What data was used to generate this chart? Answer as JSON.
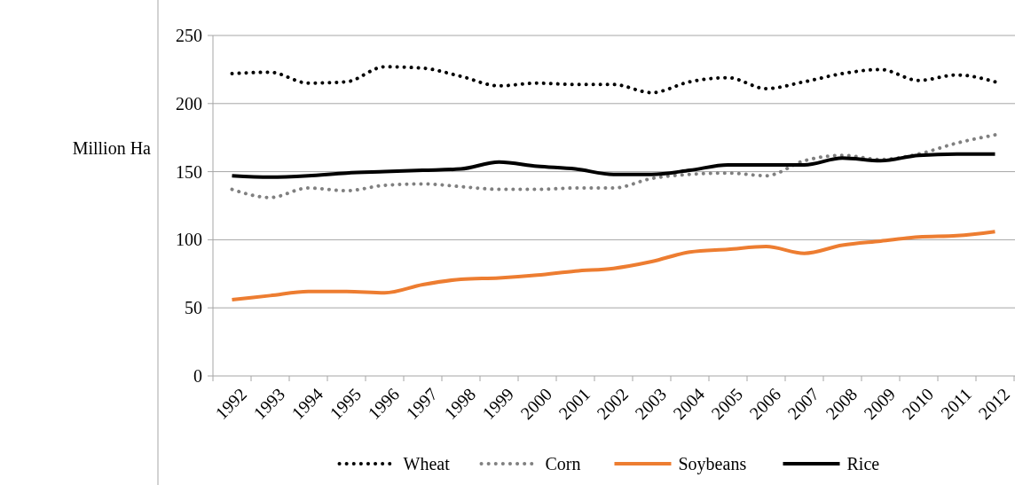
{
  "chart_data": {
    "type": "line",
    "ylabel": "Million Ha",
    "categories": [
      "1992",
      "1993",
      "1994",
      "1995",
      "1996",
      "1997",
      "1998",
      "1999",
      "2000",
      "2001",
      "2002",
      "2003",
      "2004",
      "2005",
      "2006",
      "2007",
      "2008",
      "2009",
      "2010",
      "2011",
      "2012"
    ],
    "series": [
      {
        "name": "Wheat",
        "color": "#000000",
        "line_style": "dotted",
        "values": [
          222,
          223,
          215,
          216,
          227,
          226,
          220,
          213,
          215,
          214,
          214,
          208,
          216,
          219,
          211,
          216,
          222,
          225,
          217,
          221,
          216
        ]
      },
      {
        "name": "Corn",
        "color": "#808080",
        "line_style": "dotted",
        "values": [
          137,
          131,
          138,
          136,
          140,
          141,
          139,
          137,
          137,
          138,
          138,
          145,
          148,
          149,
          147,
          158,
          162,
          159,
          163,
          171,
          177
        ]
      },
      {
        "name": "Soybeans",
        "color": "#ed7d31",
        "line_style": "solid",
        "values": [
          56,
          59,
          62,
          62,
          61,
          67,
          71,
          72,
          74,
          77,
          79,
          84,
          91,
          93,
          95,
          90,
          96,
          99,
          102,
          103,
          106
        ]
      },
      {
        "name": "Rice",
        "color": "#000000",
        "line_style": "solid",
        "values": [
          147,
          146,
          147,
          149,
          150,
          151,
          152,
          157,
          154,
          152,
          148,
          148,
          151,
          155,
          155,
          155,
          160,
          158,
          162,
          163,
          163
        ]
      }
    ],
    "ylim": [
      0,
      250
    ],
    "yticks": [
      0,
      50,
      100,
      150,
      200,
      250
    ],
    "grid": "y",
    "legend": "bottom"
  }
}
